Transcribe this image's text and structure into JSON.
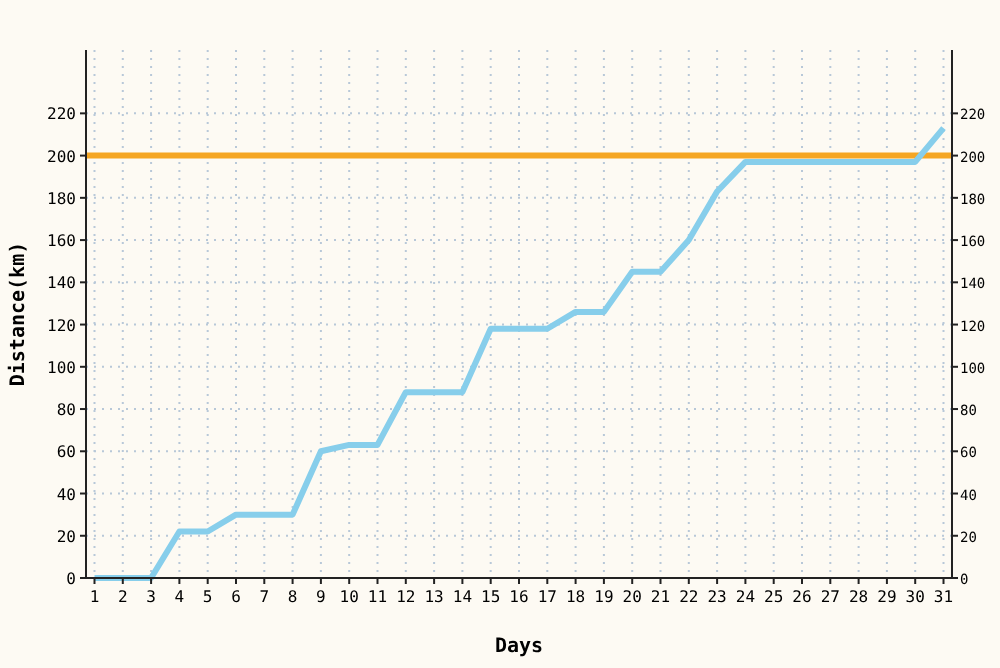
{
  "chart_data": {
    "type": "line",
    "xlabel": "Days",
    "ylabel": "Distance(km)",
    "x": [
      1,
      2,
      3,
      4,
      5,
      6,
      7,
      8,
      9,
      10,
      11,
      12,
      13,
      14,
      15,
      16,
      17,
      18,
      19,
      20,
      21,
      22,
      23,
      24,
      25,
      26,
      27,
      28,
      29,
      30,
      31
    ],
    "series": [
      {
        "color": "#87ceeb",
        "values": [
          0,
          0,
          0,
          22,
          22,
          30,
          30,
          30,
          60,
          63,
          63,
          88,
          88,
          88,
          118,
          118,
          118,
          126,
          126,
          145,
          145,
          160,
          183,
          197,
          197,
          197,
          197,
          197,
          197,
          197,
          213
        ]
      }
    ],
    "xlim": [
      0.7,
      31.3
    ],
    "xticks": [
      1,
      2,
      3,
      4,
      5,
      6,
      7,
      8,
      9,
      10,
      11,
      12,
      13,
      14,
      15,
      16,
      17,
      18,
      19,
      20,
      21,
      22,
      23,
      24,
      25,
      26,
      27,
      28,
      29,
      30,
      31
    ],
    "ylim": [
      0,
      250
    ],
    "yticks": [
      0,
      20,
      40,
      60,
      80,
      100,
      120,
      140,
      160,
      180,
      200,
      220
    ],
    "y2lim": [
      0,
      250
    ],
    "y2ticks": [
      0,
      20,
      40,
      60,
      80,
      100,
      120,
      140,
      160,
      180,
      200,
      220
    ],
    "ref_lines": [
      {
        "axis": "y",
        "value": 200,
        "color": "#f5a623"
      }
    ],
    "grid": true,
    "line_style": "solid",
    "marker": "none"
  }
}
